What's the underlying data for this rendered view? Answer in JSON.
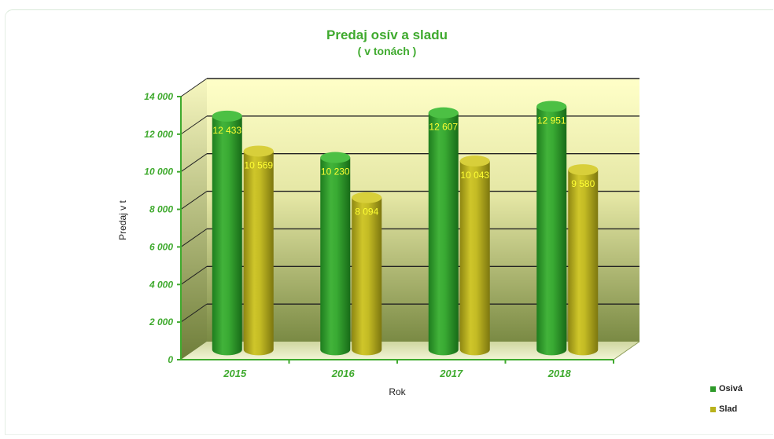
{
  "chart_data": {
    "type": "bar",
    "title": "Predaj osív a sladu",
    "subtitle": "( v tonách )",
    "xlabel": "Rok",
    "ylabel": "Predaj v t",
    "categories": [
      "2015",
      "2016",
      "2017",
      "2018"
    ],
    "series": [
      {
        "name": "Osivá",
        "values": [
          12433,
          10230,
          12607,
          12951
        ],
        "labels": [
          "12 433",
          "10 230",
          "12 607",
          "12 951"
        ],
        "color": "#2e9a2a"
      },
      {
        "name": "Slad",
        "values": [
          10569,
          8094,
          10043,
          9580
        ],
        "labels": [
          "10 569",
          "8 094",
          "10 043",
          "9 580"
        ],
        "color": "#b9b21c"
      }
    ],
    "ylim": [
      0,
      14000
    ],
    "yticks": [
      0,
      2000,
      4000,
      6000,
      8000,
      10000,
      12000,
      14000
    ],
    "ytick_labels": [
      "0",
      "2 000",
      "4 000",
      "6 000",
      "8 000",
      "10 000",
      "12 000",
      "14 000"
    ],
    "grid": true,
    "legend_position": "bottom-right",
    "label_color": "#ffff33",
    "axis_color": "#3faa2e"
  }
}
